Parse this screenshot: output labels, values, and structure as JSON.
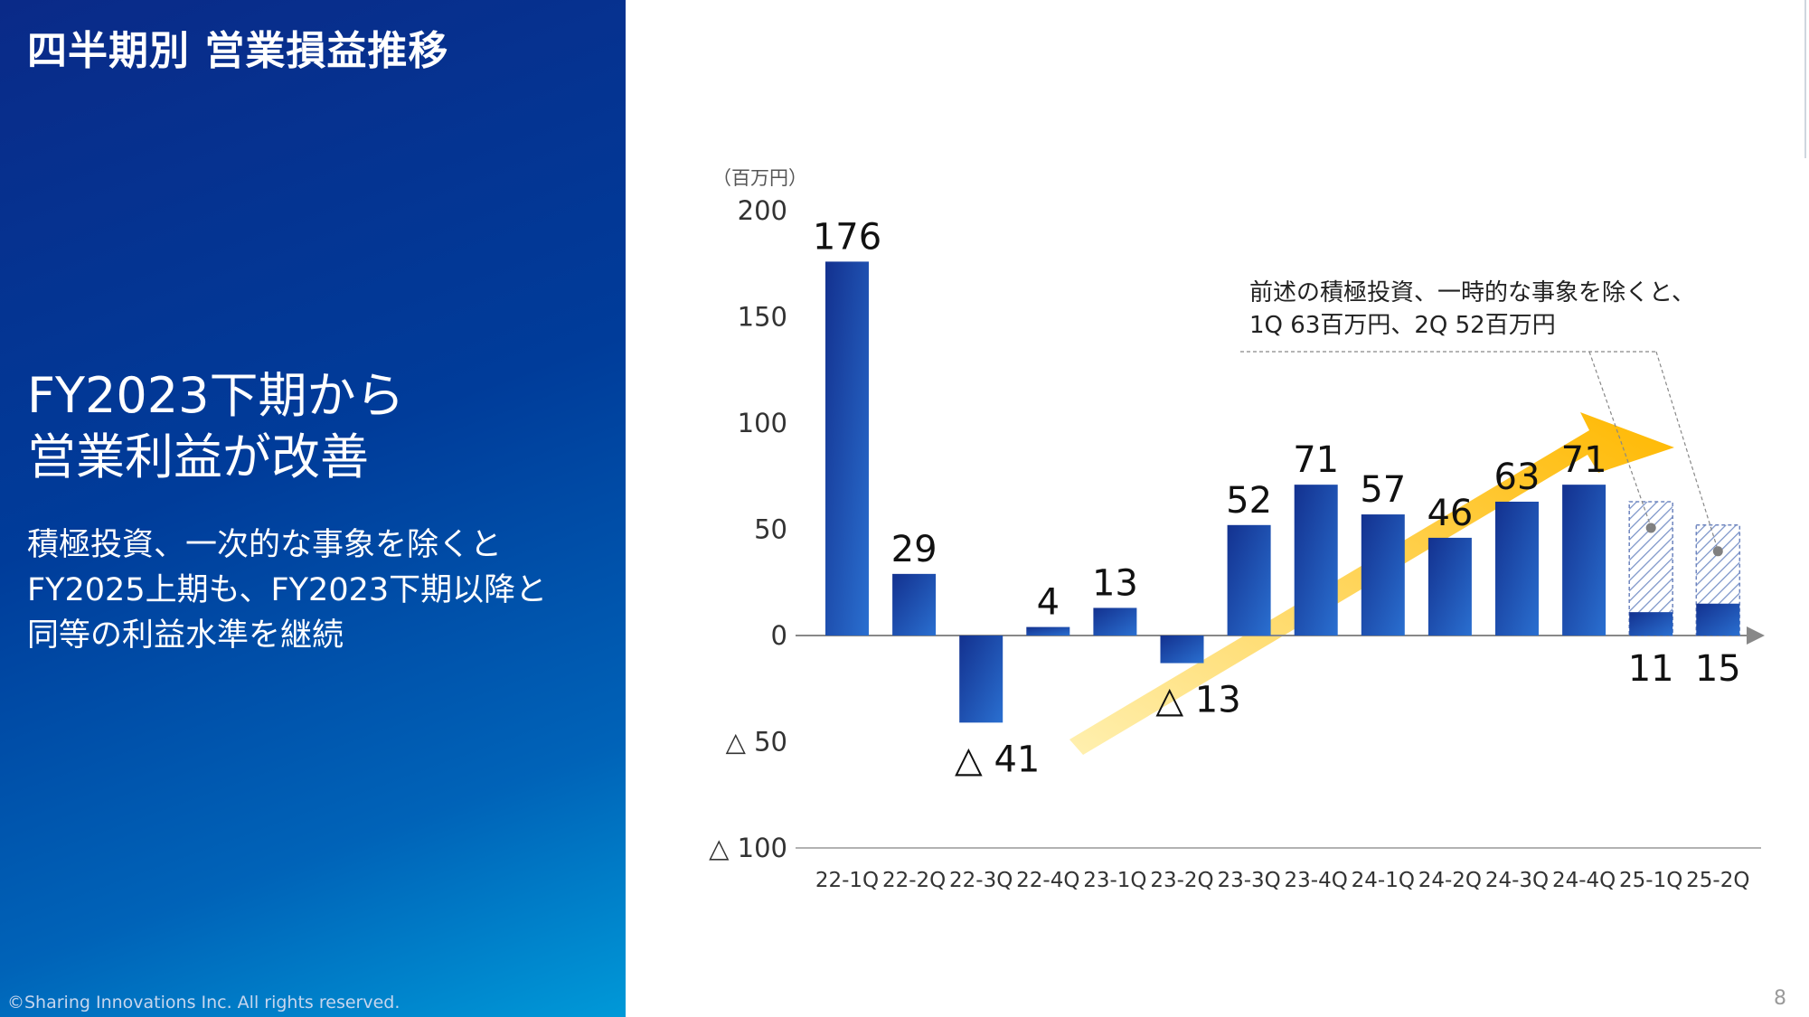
{
  "slide": {
    "title": "四半期別 営業損益推移",
    "headline": [
      "FY2023下期から",
      "営業利益が改善"
    ],
    "subtext": [
      "積極投資、一次的な事象を除くと",
      "FY2025上期も、FY2023下期以降と",
      "同等の利益水準を継続"
    ],
    "copyright": "©Sharing Innovations Inc. All rights reserved.",
    "page_number": "8"
  },
  "chart_data": {
    "type": "bar",
    "unit_label": "（百万円）",
    "categories": [
      "22-1Q",
      "22-2Q",
      "22-3Q",
      "22-4Q",
      "23-1Q",
      "23-2Q",
      "23-3Q",
      "23-4Q",
      "24-1Q",
      "24-2Q",
      "24-3Q",
      "24-4Q",
      "25-1Q",
      "25-2Q"
    ],
    "values": [
      176,
      29,
      -41,
      4,
      13,
      -13,
      52,
      71,
      57,
      46,
      63,
      71,
      11,
      15
    ],
    "data_labels": [
      "176",
      "29",
      "△ 41",
      "4",
      "13",
      "△ 13",
      "52",
      "71",
      "57",
      "46",
      "63",
      "71",
      "11",
      "15"
    ],
    "adjusted_values": [
      null,
      null,
      null,
      null,
      null,
      null,
      null,
      null,
      null,
      null,
      null,
      null,
      63,
      52
    ],
    "ylim": [
      -100,
      200
    ],
    "yticks": [
      200,
      150,
      100,
      50,
      0,
      -50,
      -100
    ],
    "ytick_labels": [
      "200",
      "150",
      "100",
      "50",
      "0",
      "△ 50",
      "△ 100"
    ],
    "annotation": [
      "前述の積極投資、一時的な事象を除くと、",
      "1Q 63百万円、2Q 52百万円"
    ],
    "colors": {
      "bar_dark": "#13318f",
      "bar_light": "#2a6fd0",
      "arrow_start": "#fff0b0",
      "arrow_end": "#ffb800",
      "hatch": "#7a93c8",
      "axis": "#888888"
    }
  }
}
